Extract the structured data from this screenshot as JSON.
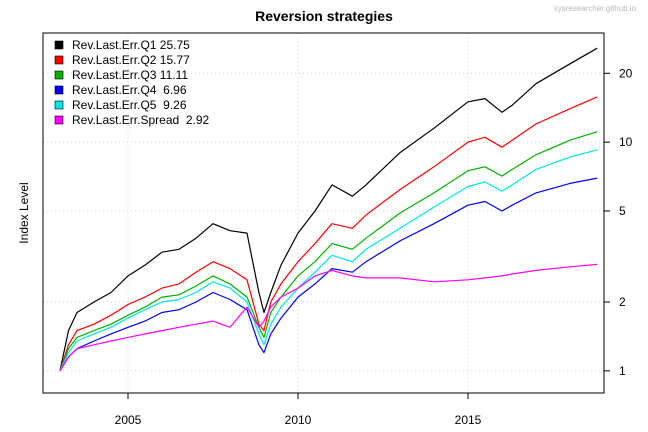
{
  "watermark": "sysresearcher.github.io",
  "chart_data": {
    "type": "line",
    "title": "Reversion strategies",
    "xlabel": "",
    "ylabel": "Index Level",
    "y_scale": "log",
    "xlim": [
      2002.5,
      2019.0
    ],
    "ylim": [
      0.8,
      30
    ],
    "x_ticks": [
      {
        "value": 2005,
        "label": "2005"
      },
      {
        "value": 2010,
        "label": "2010"
      },
      {
        "value": 2015,
        "label": "2015"
      }
    ],
    "y_ticks": [
      {
        "value": 1,
        "label": "1"
      },
      {
        "value": 2,
        "label": "2"
      },
      {
        "value": 5,
        "label": "5"
      },
      {
        "value": 10,
        "label": "10"
      },
      {
        "value": 20,
        "label": "20"
      }
    ],
    "y_axis_side": "right",
    "grid": true,
    "legend_position": "top-left",
    "legend": [
      "Rev.Last.Err.Q1 25.75",
      "Rev.Last.Err.Q2 15.77",
      "Rev.Last.Err.Q3 11.11",
      "Rev.Last.Err.Q4  6.96",
      "Rev.Last.Err.Q5  9.26",
      "Rev.Last.Err.Spread  2.92"
    ],
    "x": [
      2003.0,
      2003.25,
      2003.5,
      2004.0,
      2004.5,
      2005.0,
      2005.5,
      2006.0,
      2006.5,
      2007.0,
      2007.5,
      2008.0,
      2008.5,
      2008.85,
      2009.0,
      2009.2,
      2009.5,
      2010.0,
      2010.5,
      2011.0,
      2011.6,
      2012.0,
      2013.0,
      2014.0,
      2015.0,
      2015.5,
      2016.0,
      2016.3,
      2017.0,
      2018.0,
      2018.8
    ],
    "series": [
      {
        "name": "Rev.Last.Err.Q1",
        "color": "#000000",
        "values": [
          1.0,
          1.5,
          1.8,
          2.0,
          2.2,
          2.6,
          2.9,
          3.3,
          3.4,
          3.8,
          4.4,
          4.1,
          4.0,
          2.2,
          1.8,
          2.2,
          2.9,
          4.0,
          5.0,
          6.5,
          5.8,
          6.5,
          9.0,
          11.5,
          15.0,
          15.5,
          13.5,
          14.5,
          18.0,
          22.0,
          25.75
        ]
      },
      {
        "name": "Rev.Last.Err.Q2",
        "color": "#ff0000",
        "values": [
          1.0,
          1.3,
          1.5,
          1.6,
          1.75,
          1.95,
          2.1,
          2.3,
          2.4,
          2.7,
          3.0,
          2.8,
          2.5,
          1.6,
          1.5,
          2.0,
          2.4,
          3.0,
          3.6,
          4.4,
          4.2,
          4.8,
          6.2,
          7.8,
          10.0,
          10.5,
          9.5,
          10.2,
          12.0,
          14.0,
          15.77
        ]
      },
      {
        "name": "Rev.Last.Err.Q3",
        "color": "#00b000",
        "values": [
          1.0,
          1.25,
          1.4,
          1.5,
          1.6,
          1.75,
          1.9,
          2.1,
          2.15,
          2.35,
          2.6,
          2.4,
          2.1,
          1.55,
          1.4,
          1.8,
          2.1,
          2.6,
          3.0,
          3.6,
          3.4,
          3.8,
          4.9,
          6.0,
          7.5,
          7.8,
          7.1,
          7.6,
          8.8,
          10.2,
          11.11
        ]
      },
      {
        "name": "Rev.Last.Err.Q4",
        "color": "#0000ff",
        "values": [
          1.0,
          1.15,
          1.25,
          1.35,
          1.45,
          1.55,
          1.65,
          1.8,
          1.85,
          2.0,
          2.2,
          2.05,
          1.85,
          1.3,
          1.2,
          1.45,
          1.7,
          2.1,
          2.4,
          2.8,
          2.7,
          3.0,
          3.7,
          4.4,
          5.3,
          5.5,
          5.0,
          5.3,
          6.0,
          6.6,
          6.96
        ]
      },
      {
        "name": "Rev.Last.Err.Q5",
        "color": "#00e5e5",
        "values": [
          1.0,
          1.2,
          1.35,
          1.45,
          1.55,
          1.7,
          1.85,
          2.0,
          2.05,
          2.2,
          2.45,
          2.3,
          2.0,
          1.45,
          1.3,
          1.6,
          1.9,
          2.3,
          2.7,
          3.2,
          3.0,
          3.4,
          4.2,
          5.2,
          6.4,
          6.7,
          6.1,
          6.5,
          7.6,
          8.6,
          9.26
        ]
      },
      {
        "name": "Rev.Last.Err.Spread",
        "color": "#ff00ff",
        "values": [
          1.0,
          1.15,
          1.25,
          1.3,
          1.35,
          1.4,
          1.45,
          1.5,
          1.55,
          1.6,
          1.65,
          1.55,
          1.9,
          1.55,
          1.65,
          1.9,
          2.1,
          2.3,
          2.6,
          2.75,
          2.6,
          2.55,
          2.55,
          2.45,
          2.5,
          2.55,
          2.6,
          2.65,
          2.75,
          2.85,
          2.92
        ]
      }
    ]
  }
}
